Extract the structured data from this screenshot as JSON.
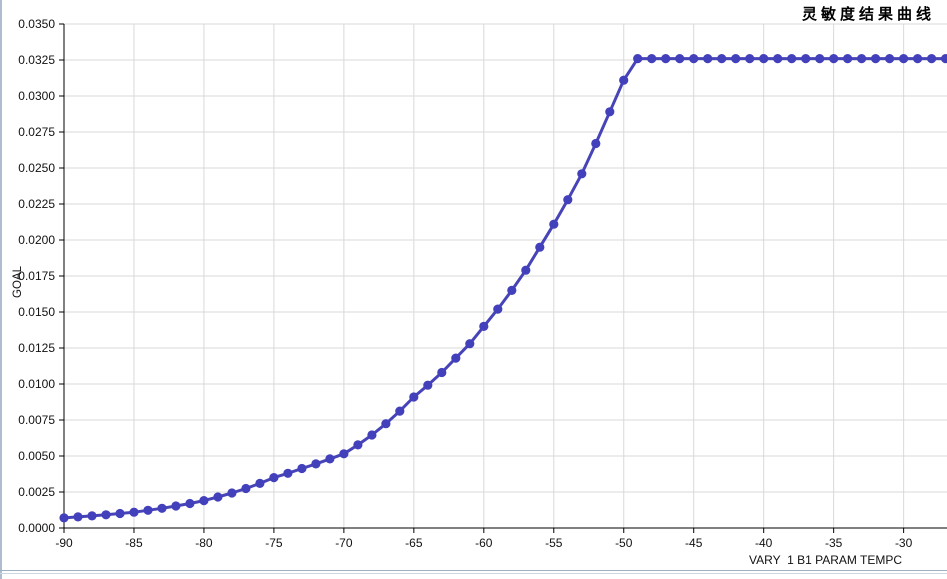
{
  "window": {
    "background": "#ffffff",
    "border_color": "#aebccf"
  },
  "chart_data": {
    "type": "line",
    "title": "灵敏度结果曲线",
    "xlabel": "VARY  1 B1 PARAM TEMPC",
    "ylabel": "GOAL",
    "xlim": [
      -90,
      -26.9
    ],
    "ylim": [
      0,
      0.035
    ],
    "x_ticks": [
      -90,
      -85,
      -80,
      -75,
      -70,
      -65,
      -60,
      -55,
      -50,
      -45,
      -40,
      -35,
      -30
    ],
    "y_ticks": [
      0.0,
      0.0025,
      0.005,
      0.0075,
      0.01,
      0.0125,
      0.015,
      0.0175,
      0.02,
      0.0225,
      0.025,
      0.0275,
      0.03,
      0.0325,
      0.035
    ],
    "y_tick_decimals": 4,
    "grid": true,
    "legend_position": "none",
    "line_color": "#4744b8",
    "marker_color": "#4340bb",
    "marker_shape": "circle",
    "grid_color": "#d9d9d9",
    "axis_color": "#000000",
    "tick_label_color": "#111111",
    "plateau_value": 0.0326,
    "series": [
      {
        "name": "GOAL",
        "x": [
          -90,
          -89,
          -88,
          -87,
          -86,
          -85,
          -84,
          -83,
          -82,
          -81,
          -80,
          -79,
          -78,
          -77,
          -76,
          -75,
          -74,
          -73,
          -72,
          -71,
          -70,
          -69,
          -68,
          -67,
          -66,
          -65,
          -64,
          -63,
          -62,
          -61,
          -60,
          -59,
          -58,
          -57,
          -56,
          -55,
          -54,
          -53,
          -52,
          -51,
          -50,
          -49,
          -48,
          -47,
          -46,
          -45,
          -44,
          -43,
          -42,
          -41,
          -40,
          -39,
          -38,
          -37,
          -36,
          -35,
          -34,
          -33,
          -32,
          -31,
          -30,
          -29,
          -28,
          -27
        ],
        "y": [
          0.0007,
          0.00077,
          0.00084,
          0.00092,
          0.00101,
          0.0011,
          0.00123,
          0.00137,
          0.00153,
          0.0017,
          0.0019,
          0.00215,
          0.00243,
          0.00274,
          0.0031,
          0.0035,
          0.0038,
          0.00413,
          0.00445,
          0.0048,
          0.00515,
          0.00577,
          0.00646,
          0.00724,
          0.00812,
          0.0091,
          0.00992,
          0.0108,
          0.0118,
          0.0128,
          0.014,
          0.0152,
          0.0165,
          0.0179,
          0.0195,
          0.0211,
          0.0228,
          0.0246,
          0.0267,
          0.0289,
          0.0311,
          0.0326,
          0.0326,
          0.0326,
          0.0326,
          0.0326,
          0.0326,
          0.0326,
          0.0326,
          0.0326,
          0.0326,
          0.0326,
          0.0326,
          0.0326,
          0.0326,
          0.0326,
          0.0326,
          0.0326,
          0.0326,
          0.0326,
          0.0326,
          0.0326,
          0.0326,
          0.0326
        ]
      }
    ]
  }
}
